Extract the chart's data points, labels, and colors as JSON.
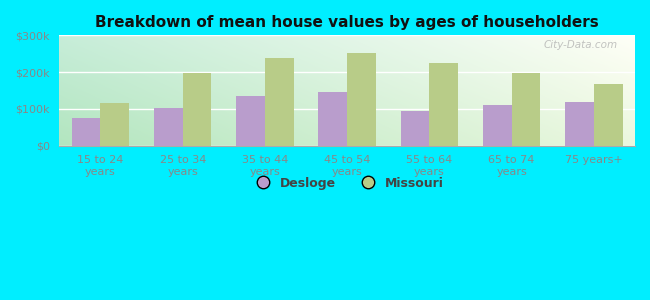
{
  "title": "Breakdown of mean house values by ages of householders",
  "categories": [
    "15 to 24\nyears",
    "25 to 34\nyears",
    "35 to 44\nyears",
    "45 to 54\nyears",
    "55 to 64\nyears",
    "65 to 74\nyears",
    "75 years+"
  ],
  "desloge": [
    75000,
    103000,
    135000,
    145000,
    95000,
    112000,
    118000
  ],
  "missouri": [
    115000,
    198000,
    238000,
    253000,
    225000,
    197000,
    168000
  ],
  "desloge_color": "#b99dcc",
  "missouri_color": "#b8cc88",
  "bg_color_topleft": "#c8eed8",
  "bg_color_topright": "#f0f8f0",
  "bg_color_bottomleft": "#a8e8c8",
  "bg_color_bottomright": "#e8f8e8",
  "ylim": [
    0,
    300000
  ],
  "yticks": [
    0,
    100000,
    200000,
    300000
  ],
  "ytick_labels": [
    "$0",
    "$100k",
    "$200k",
    "$300k"
  ],
  "bar_width": 0.35,
  "fig_bg": "#00eeff",
  "grid_color": "#ffffff",
  "axis_color": "#aaaaaa",
  "tick_color": "#888888",
  "watermark": "City-Data.com",
  "title_fontsize": 11,
  "tick_fontsize": 8,
  "legend_fontsize": 9
}
